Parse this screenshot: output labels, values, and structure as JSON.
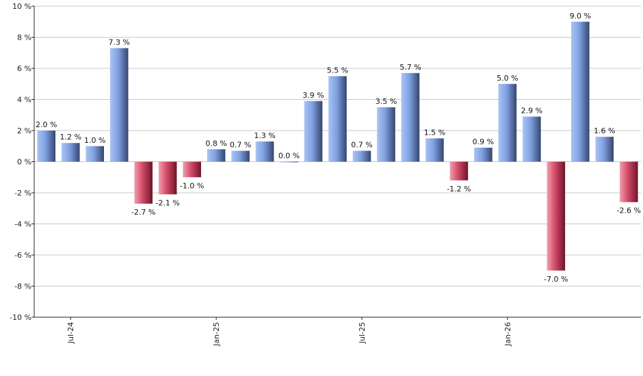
{
  "chart_data": {
    "type": "bar",
    "title": "",
    "xlabel": "",
    "ylabel": "",
    "ylim": [
      -10,
      10
    ],
    "yticks": [
      10,
      8,
      6,
      4,
      2,
      0,
      -2,
      -4,
      -6,
      -8,
      -10
    ],
    "ytick_labels": [
      "10 %",
      "8 %",
      "6 %",
      "4 %",
      "2 %",
      "0 %",
      "-2 %",
      "-4 %",
      "-6 %",
      "-8 %",
      "-10 %"
    ],
    "grid": true,
    "categories": [
      "2024-06",
      "2024-07",
      "2024-08",
      "2024-09",
      "2024-10",
      "2024-11",
      "2024-12",
      "2025-01",
      "2025-02",
      "2025-03",
      "2025-04",
      "2025-05",
      "2025-06",
      "2025-07",
      "2025-08",
      "2025-09",
      "2025-10",
      "2025-11",
      "2025-12",
      "2026-01",
      "2026-02",
      "2026-03",
      "2026-04",
      "2026-05",
      "2026-06"
    ],
    "values": [
      2.0,
      1.2,
      1.0,
      7.3,
      -2.7,
      -2.1,
      -1.0,
      0.8,
      0.7,
      1.3,
      0.0,
      3.9,
      5.5,
      0.7,
      3.5,
      5.7,
      1.5,
      -1.2,
      0.9,
      5.0,
      2.9,
      -7.0,
      9.0,
      1.6,
      -2.6
    ],
    "value_labels": [
      "2.0 %",
      "1.2 %",
      "1.0 %",
      "7.3 %",
      "-2.7 %",
      "-2.1 %",
      "-1.0 %",
      "0.8 %",
      "0.7 %",
      "1.3 %",
      "0.0 %",
      "3.9 %",
      "5.5 %",
      "0.7 %",
      "3.5 %",
      "5.7 %",
      "1.5 %",
      "-1.2 %",
      "0.9 %",
      "5.0 %",
      "2.9 %",
      "-7.0 %",
      "9.0 %",
      "1.6 %",
      "-2.6 %"
    ],
    "xtick_labels": [
      {
        "index": 1,
        "label": "Jul-24"
      },
      {
        "index": 7,
        "label": "Jan-25"
      },
      {
        "index": 13,
        "label": "Jul-25"
      },
      {
        "index": 19,
        "label": "Jan-26"
      }
    ],
    "colors": {
      "positive_light": "#a9c4f5",
      "positive_mid": "#7f9fe0",
      "positive_dark": "#34466e",
      "negative_light": "#f0a0b2",
      "negative_mid": "#d24a66",
      "negative_dark": "#6e1428"
    }
  }
}
